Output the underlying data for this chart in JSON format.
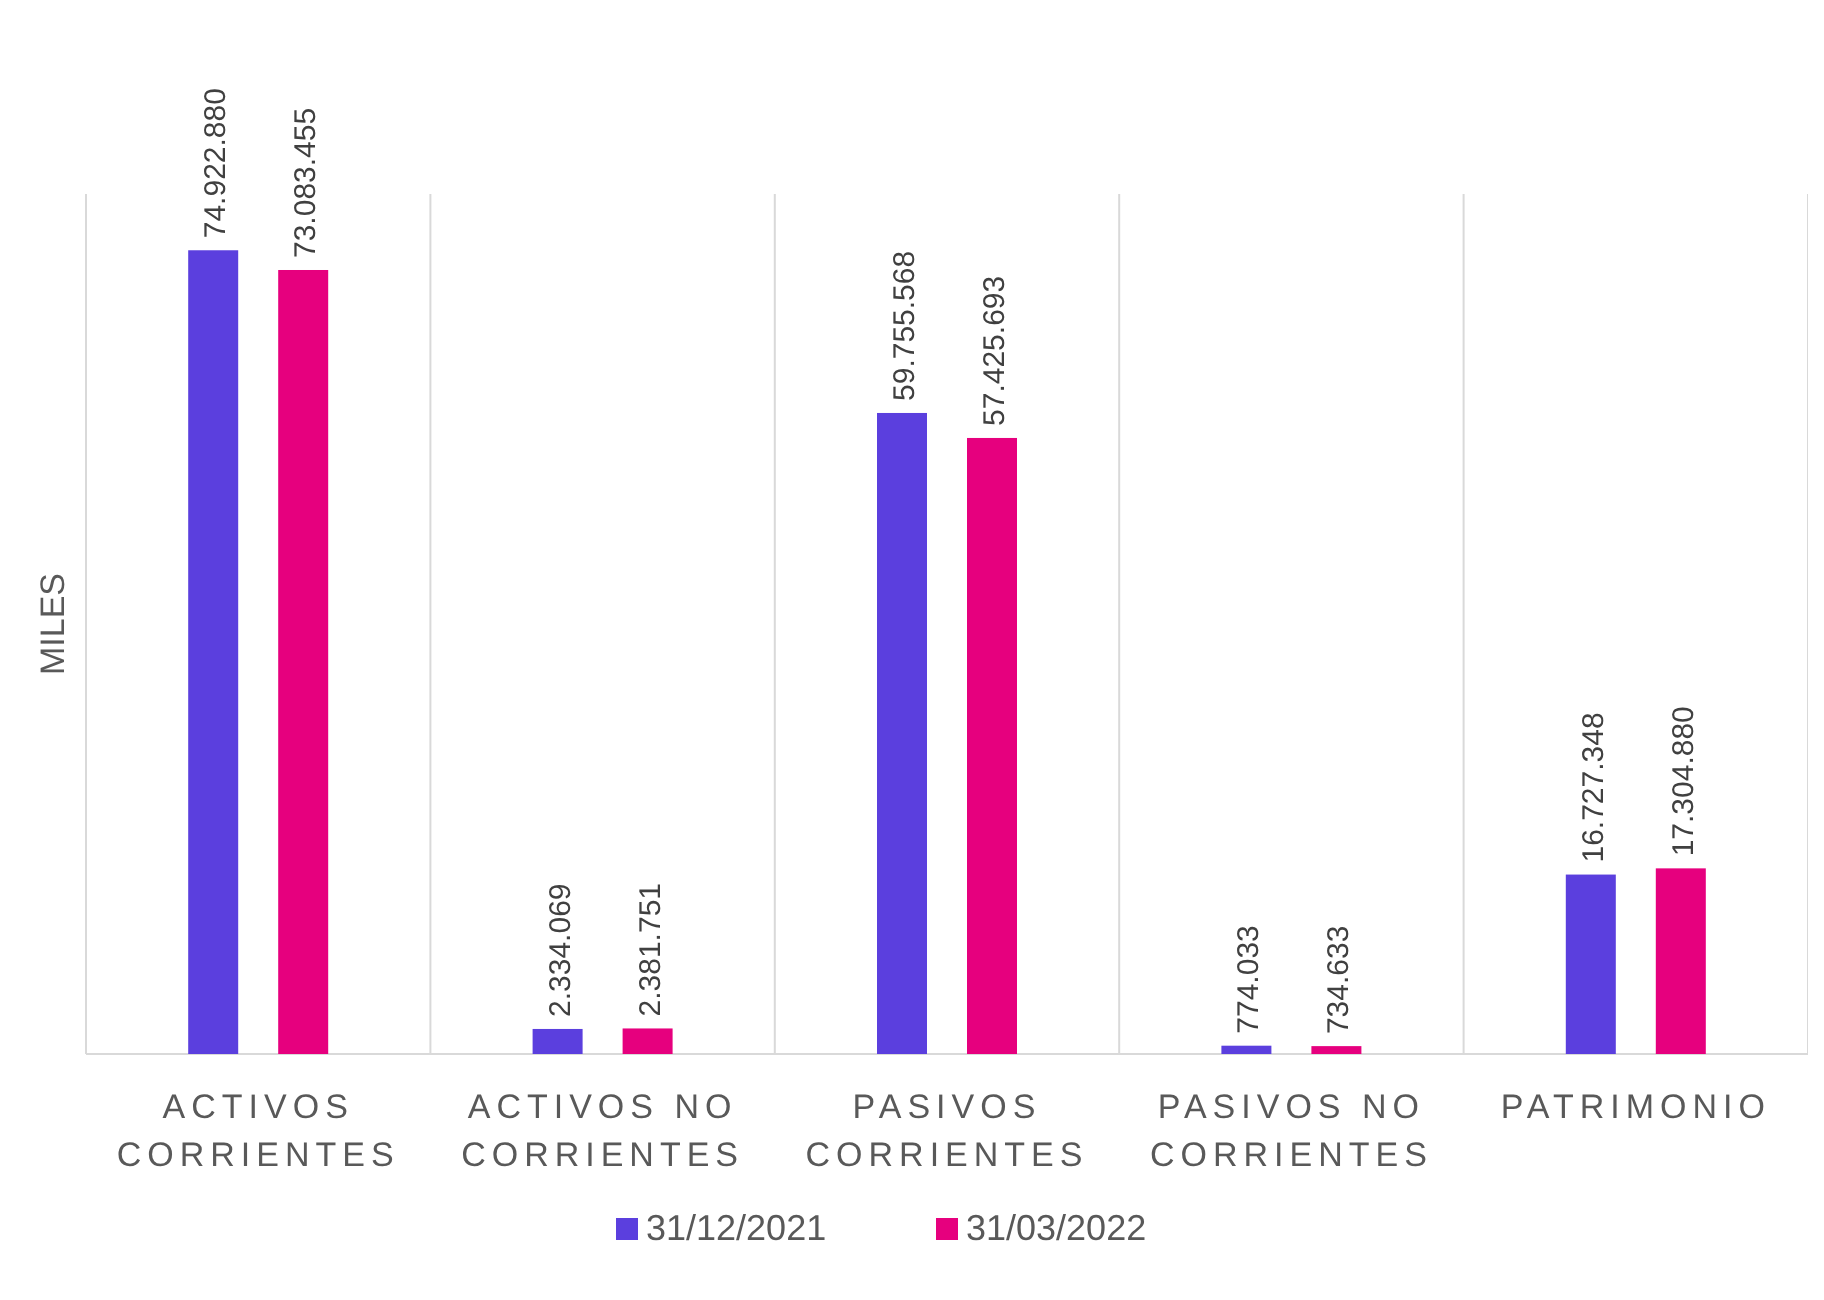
{
  "chart_data": {
    "type": "bar",
    "ylabel": "MILES",
    "categories": [
      "ACTIVOS CORRIENTES",
      "ACTIVOS NO CORRIENTES",
      "PASIVOS CORRIENTES",
      "PASIVOS NO CORRIENTES",
      "PATRIMONIO"
    ],
    "series": [
      {
        "name": "31/12/2021",
        "color": "#5b3fde",
        "values": [
          74922880,
          2334069,
          59755568,
          774033,
          16727348
        ],
        "value_labels": [
          "74.922.880",
          "2.334.069",
          "59.755.568",
          "774.033",
          "16.727.348"
        ]
      },
      {
        "name": "31/03/2022",
        "color": "#e6007e",
        "values": [
          73083455,
          2381751,
          57425693,
          734633,
          17304880
        ],
        "value_labels": [
          "73.083.455",
          "2.381.751",
          "57.425.693",
          "734.633",
          "17.304.880"
        ]
      }
    ],
    "grid": "x",
    "legend": "bottom"
  }
}
